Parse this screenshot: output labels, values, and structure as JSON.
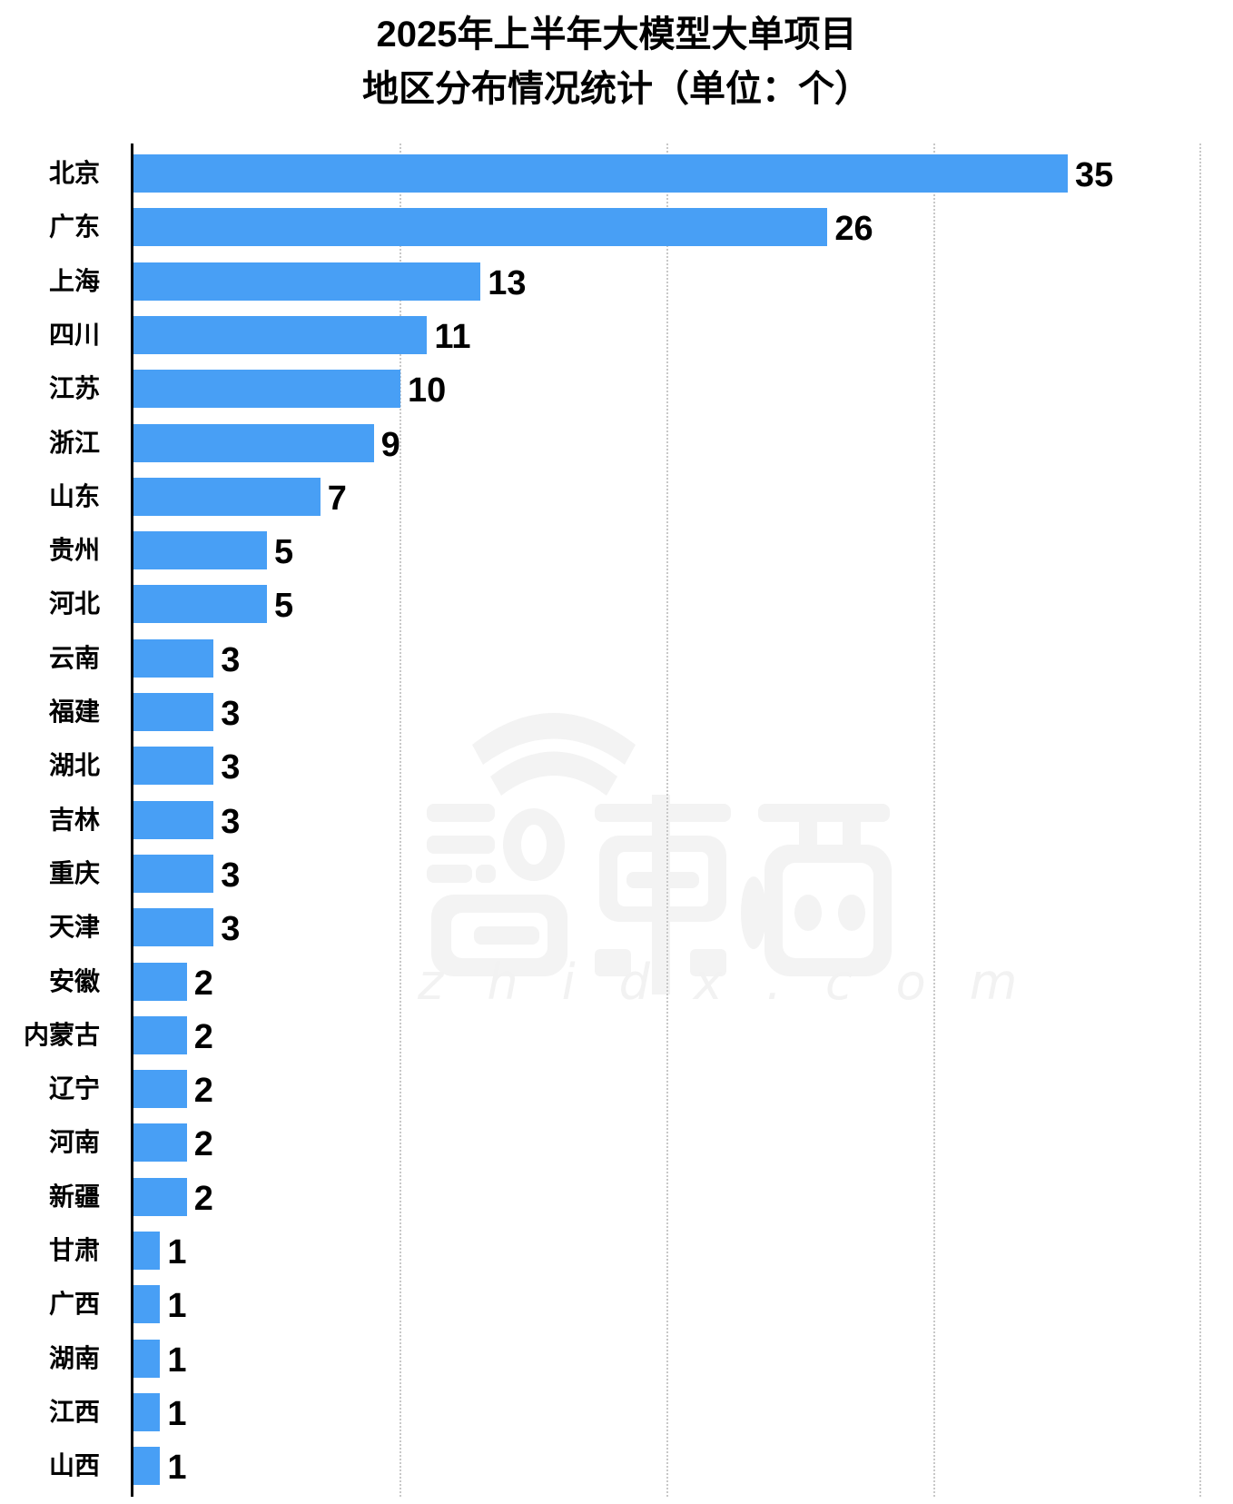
{
  "title": {
    "line1": "2025年上半年大模型大单项目",
    "line2": "地区分布情况统计（单位：个）"
  },
  "watermark": {
    "logo_text": "智東西",
    "url_text": "zhidx.com"
  },
  "colors": {
    "bar": "#489ff5",
    "axis": "#000000",
    "grid": "#c8c8c8",
    "watermark": "#f3f3f3"
  },
  "chart_data": {
    "type": "bar",
    "orientation": "horizontal",
    "title": "2025年上半年大模型大单项目地区分布情况统计（单位：个）",
    "xlabel": "",
    "ylabel": "",
    "xlim": [
      0,
      40
    ],
    "grid": {
      "x": true,
      "style": "dotted",
      "ticks": [
        10,
        20,
        30,
        40
      ]
    },
    "legend": null,
    "data_labels": true,
    "categories": [
      "北京",
      "广东",
      "上海",
      "四川",
      "江苏",
      "浙江",
      "山东",
      "贵州",
      "河北",
      "云南",
      "福建",
      "湖北",
      "吉林",
      "重庆",
      "天津",
      "安徽",
      "内蒙古",
      "辽宁",
      "河南",
      "新疆",
      "甘肃",
      "广西",
      "湖南",
      "江西",
      "山西"
    ],
    "values": [
      35,
      26,
      13,
      11,
      10,
      9,
      7,
      5,
      5,
      3,
      3,
      3,
      3,
      3,
      3,
      2,
      2,
      2,
      2,
      2,
      1,
      1,
      1,
      1,
      1
    ]
  }
}
